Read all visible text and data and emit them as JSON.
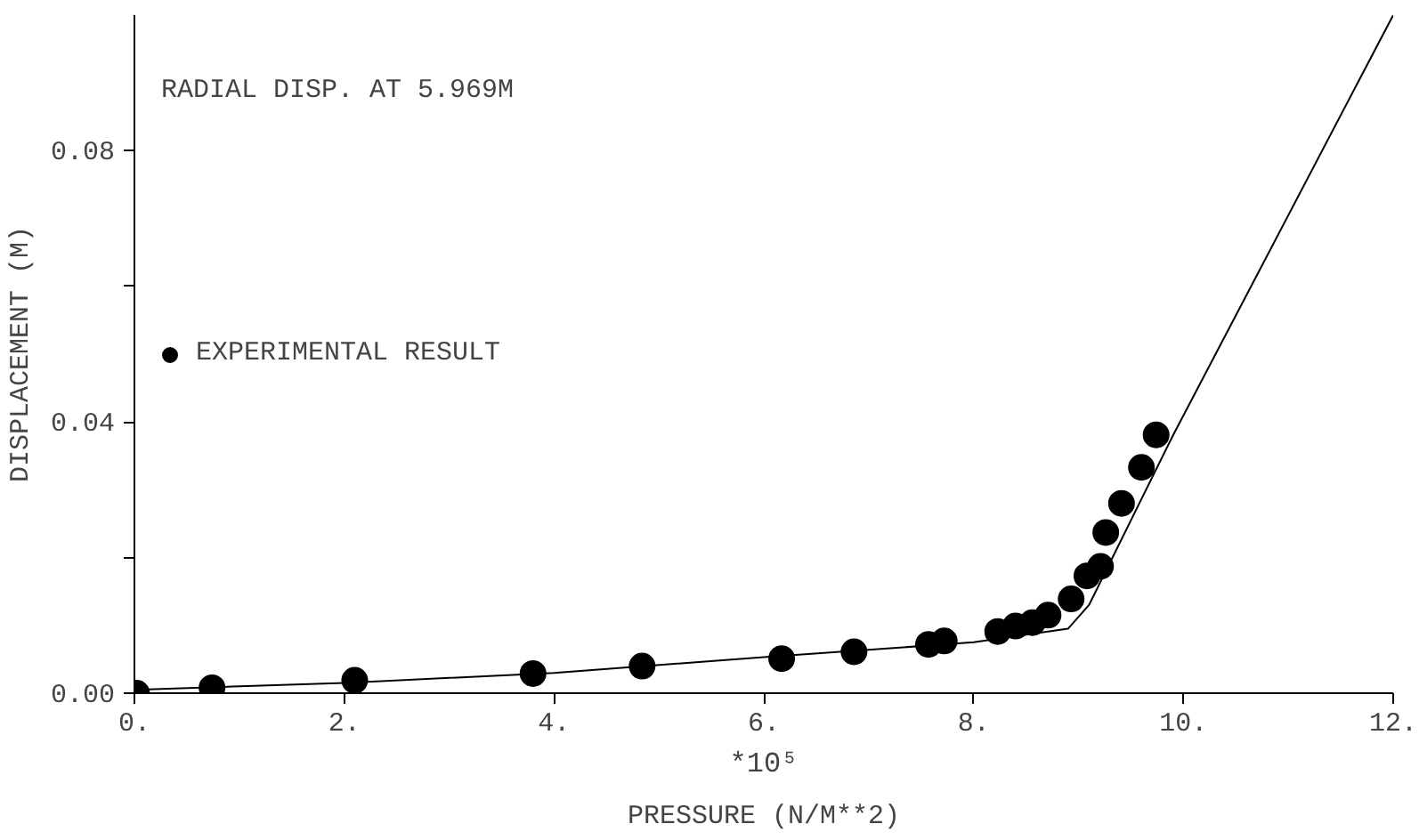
{
  "chart_data": {
    "type": "line",
    "title": "RADIAL DISP. AT 5.969M",
    "xlabel": "PRESSURE (N/M**2)",
    "ylabel": "DISPLACEMENT (M)",
    "annotations": [
      "*10⁵"
    ],
    "xlim": [
      0,
      12
    ],
    "ylim": [
      0,
      0.1
    ],
    "xticks": [
      {
        "value": 0,
        "label": "0."
      },
      {
        "value": 2,
        "label": "2."
      },
      {
        "value": 4,
        "label": "4."
      },
      {
        "value": 6,
        "label": "6."
      },
      {
        "value": 8,
        "label": "8."
      },
      {
        "value": 10,
        "label": "10."
      },
      {
        "value": 12,
        "label": "12."
      }
    ],
    "yticks": [
      "0.00",
      {
        "value": 0.02,
        "label": null
      },
      {
        "value": 0.04,
        "label": "0.04"
      },
      {
        "value": 0.06,
        "label": null
      },
      {
        "value": 0.08,
        "label": "0.08"
      }
    ],
    "grid": false,
    "legend": "left",
    "series": [
      {
        "color": "#000000",
        "line_style": "solid",
        "marker": "none",
        "x": [
          0,
          2,
          4,
          6,
          8,
          8.9,
          9.1,
          9.9,
          12
        ],
        "values": [
          0.0005,
          0.0015,
          0.003,
          0.0053,
          0.0075,
          0.0095,
          0.013,
          0.038,
          0.1
        ]
      },
      {
        "type": "scatter",
        "name": "EXPERIMENTAL RESULT",
        "color": "#000000",
        "marker": "circle",
        "x": [
          0.02,
          0.74,
          2.1,
          3.8,
          4.84,
          6.17,
          6.86,
          7.57,
          7.72,
          8.23,
          8.4,
          8.56,
          8.71,
          8.93,
          9.08,
          9.21,
          9.26,
          9.41,
          9.6,
          9.74
        ],
        "values": [
          0.0,
          0.0008,
          0.0019,
          0.0029,
          0.004,
          0.0051,
          0.0061,
          0.0072,
          0.0077,
          0.0091,
          0.0099,
          0.0104,
          0.0115,
          0.0139,
          0.0173,
          0.0187,
          0.0237,
          0.028,
          0.0333,
          0.0381
        ]
      }
    ]
  }
}
